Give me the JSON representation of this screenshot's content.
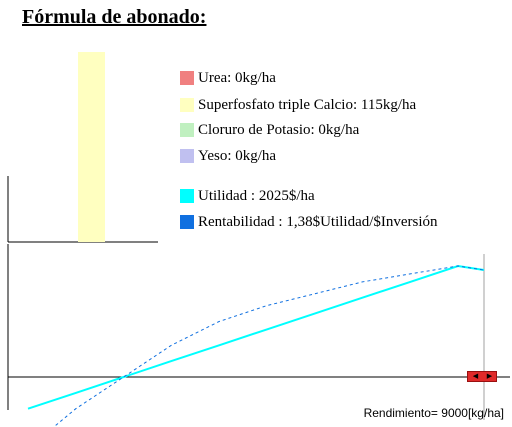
{
  "title": "Fórmula de abonado:",
  "legend": {
    "items": [
      {
        "label": "Urea: 0kg/ha",
        "color": "#f08080"
      },
      {
        "label": "Superfosfato triple Calcio: 115kg/ha",
        "color": "#ffffc0"
      },
      {
        "label": "Cloruro de Potasio: 0kg/ha",
        "color": "#c0f0c0"
      },
      {
        "label": "Yeso: 0kg/ha",
        "color": "#c0c0f0"
      },
      {
        "label": "Utilidad : 2025$/ha",
        "color": "#00ffff"
      },
      {
        "label": "Rentabilidad : 1,38$Utilidad/$Inversión",
        "color": "#1070e0"
      }
    ]
  },
  "footer": "Rendimiento= 9000[kg/ha]",
  "colors": {
    "bar": "#ffffc0",
    "utilidad": "#00ffff",
    "rentabilidad": "#1070e0",
    "axis": "#000000",
    "marker": "#a0a0a0",
    "stepper": "#e02a2a"
  },
  "stepper": {
    "left_icon": "triangle-left-icon",
    "right_icon": "triangle-right-icon"
  },
  "chart_data": [
    {
      "type": "bar",
      "categories": [
        "Urea",
        "Superfosfato triple Calcio",
        "Cloruro de Potasio",
        "Yeso"
      ],
      "values": [
        0,
        115,
        0,
        0
      ],
      "ylabel": "kg/ha"
    },
    {
      "type": "line",
      "xlabel": "Rendimiento",
      "series": [
        {
          "name": "Utilidad",
          "style": "solid",
          "x": [
            0,
            1,
            2,
            3,
            4,
            5,
            6,
            7,
            8,
            9,
            10
          ],
          "y": [
            -8,
            -4,
            0,
            4,
            8,
            12,
            16,
            20,
            24,
            28,
            27
          ]
        },
        {
          "name": "Rentabilidad",
          "style": "dashed",
          "x": [
            0,
            1,
            2,
            3,
            4,
            5,
            6,
            7,
            8,
            9,
            10
          ],
          "y": [
            -18,
            -8,
            0,
            8,
            14,
            18,
            21,
            24,
            26,
            28,
            27
          ]
        }
      ]
    }
  ]
}
